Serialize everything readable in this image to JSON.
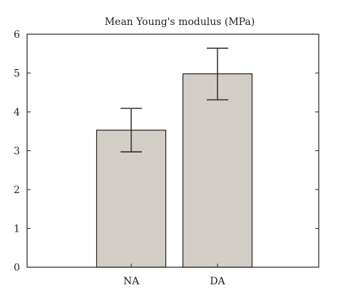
{
  "chart_data": {
    "type": "bar",
    "title": "Mean Young's modulus (MPa)",
    "categories": [
      "NA",
      "DA"
    ],
    "values": [
      3.53,
      4.98
    ],
    "error_low": [
      2.97,
      4.31
    ],
    "error_high": [
      4.09,
      5.64
    ],
    "ylim": [
      0,
      6
    ],
    "yticks": [
      "0",
      "1",
      "2",
      "3",
      "4",
      "5",
      "6"
    ],
    "xlabel": "",
    "ylabel": "",
    "bar_color": "#d3cdc8",
    "grid": false
  }
}
